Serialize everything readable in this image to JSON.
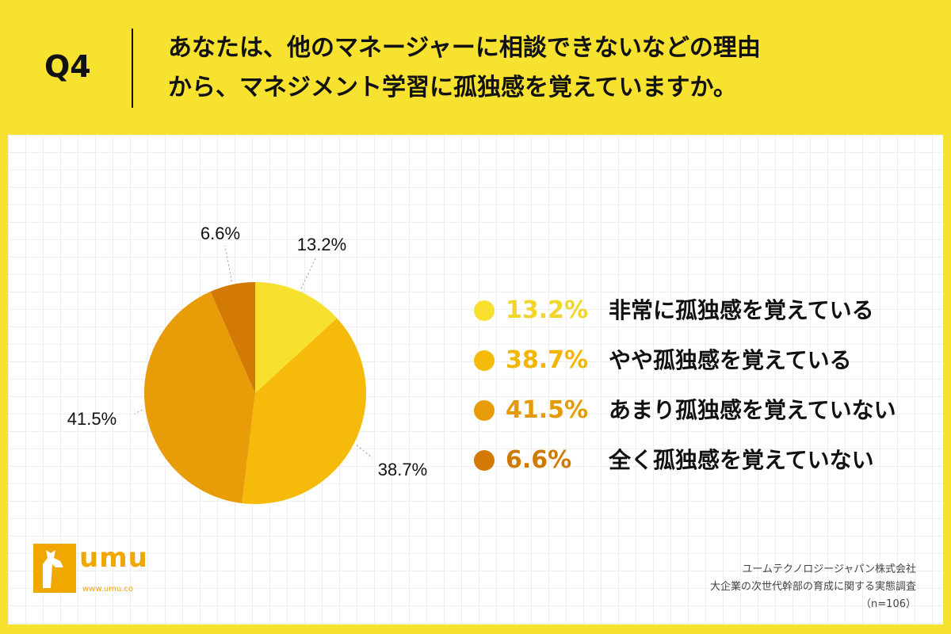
{
  "header": {
    "question_label": "Q4",
    "question_line1": "あなたは、他のマネージャーに相談できないなどの理由",
    "question_line2": "から、マネジメント学習に孤独感を覚えていますか。"
  },
  "chart_data": {
    "type": "pie",
    "slices": [
      {
        "label": "非常に孤独感を覚えている",
        "value": 13.2,
        "display": "13.2%",
        "color": "#F8E12E"
      },
      {
        "label": "やや孤独感を覚えている",
        "value": 38.7,
        "display": "38.7%",
        "color": "#F6BB0A"
      },
      {
        "label": "あまり孤独感を覚えていない",
        "value": 41.5,
        "display": "41.5%",
        "color": "#E89C08"
      },
      {
        "label": "全く孤独感を覚えていない",
        "value": 6.6,
        "display": "6.6%",
        "color": "#D37A06"
      }
    ],
    "legend_position": "right"
  },
  "legend": {
    "pct_colors": [
      "#F0D52A",
      "#F2B500",
      "#E59A00",
      "#D07A06"
    ]
  },
  "logo": {
    "text": "umu",
    "url": "www.umu.co"
  },
  "source": {
    "line1": "ユームテクノロジージャパン株式会社",
    "line2": "大企業の次世代幹部の育成に関する実態調査",
    "line3": "（n=106）"
  }
}
